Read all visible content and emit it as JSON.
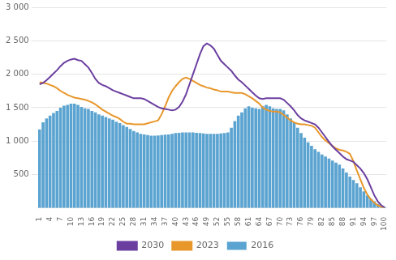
{
  "chart_data": {
    "type": "bar",
    "x": [
      1,
      2,
      3,
      4,
      5,
      6,
      7,
      8,
      9,
      10,
      11,
      12,
      13,
      14,
      15,
      16,
      17,
      18,
      19,
      20,
      21,
      22,
      23,
      24,
      25,
      26,
      27,
      28,
      29,
      30,
      31,
      32,
      33,
      34,
      35,
      36,
      37,
      38,
      39,
      40,
      41,
      42,
      43,
      44,
      45,
      46,
      47,
      48,
      49,
      50,
      51,
      52,
      53,
      54,
      55,
      56,
      57,
      58,
      59,
      60,
      61,
      62,
      63,
      64,
      65,
      66,
      67,
      68,
      69,
      70,
      71,
      72,
      73,
      74,
      75,
      76,
      77,
      78,
      79,
      80,
      81,
      82,
      83,
      84,
      85,
      86,
      87,
      88,
      89,
      90,
      91,
      92,
      93,
      94,
      95,
      96,
      97,
      98,
      99,
      100
    ],
    "series": [
      {
        "name": "2016",
        "type": "bar",
        "color": "#5ba3d0",
        "values": [
          1175,
          1280,
          1340,
          1380,
          1420,
          1450,
          1500,
          1530,
          1540,
          1560,
          1560,
          1540,
          1510,
          1490,
          1480,
          1450,
          1430,
          1400,
          1380,
          1360,
          1340,
          1320,
          1290,
          1270,
          1240,
          1210,
          1180,
          1150,
          1130,
          1110,
          1100,
          1090,
          1080,
          1080,
          1085,
          1090,
          1095,
          1100,
          1110,
          1120,
          1125,
          1130,
          1130,
          1130,
          1130,
          1125,
          1120,
          1115,
          1110,
          1110,
          1110,
          1110,
          1115,
          1120,
          1130,
          1200,
          1300,
          1380,
          1430,
          1490,
          1520,
          1500,
          1490,
          1480,
          1520,
          1540,
          1520,
          1490,
          1480,
          1480,
          1460,
          1400,
          1340,
          1280,
          1200,
          1120,
          1050,
          980,
          930,
          880,
          840,
          800,
          770,
          740,
          710,
          680,
          650,
          590,
          530,
          470,
          420,
          370,
          310,
          250,
          190,
          140,
          100,
          60,
          30,
          10
        ]
      },
      {
        "name": "2023",
        "type": "line",
        "color": "#e8972b",
        "values": [
          1880,
          1870,
          1860,
          1840,
          1820,
          1790,
          1750,
          1720,
          1690,
          1670,
          1650,
          1640,
          1630,
          1620,
          1600,
          1580,
          1550,
          1510,
          1470,
          1440,
          1410,
          1380,
          1360,
          1330,
          1290,
          1260,
          1260,
          1250,
          1250,
          1250,
          1250,
          1265,
          1280,
          1295,
          1310,
          1400,
          1520,
          1650,
          1750,
          1820,
          1880,
          1930,
          1950,
          1930,
          1900,
          1870,
          1840,
          1820,
          1800,
          1790,
          1770,
          1760,
          1740,
          1740,
          1740,
          1730,
          1720,
          1720,
          1720,
          1700,
          1670,
          1640,
          1600,
          1560,
          1500,
          1470,
          1450,
          1440,
          1440,
          1430,
          1390,
          1350,
          1310,
          1280,
          1260,
          1250,
          1250,
          1240,
          1230,
          1200,
          1130,
          1060,
          1010,
          970,
          930,
          890,
          870,
          860,
          840,
          810,
          700,
          560,
          430,
          300,
          200,
          130,
          80,
          40,
          20,
          10
        ]
      },
      {
        "name": "2030",
        "type": "line",
        "color": "#6b3fa0",
        "values": [
          1850,
          1870,
          1910,
          1960,
          2010,
          2060,
          2120,
          2170,
          2200,
          2220,
          2230,
          2210,
          2200,
          2150,
          2100,
          2020,
          1930,
          1870,
          1840,
          1820,
          1790,
          1760,
          1740,
          1720,
          1700,
          1680,
          1660,
          1640,
          1640,
          1640,
          1630,
          1600,
          1570,
          1540,
          1510,
          1490,
          1480,
          1470,
          1460,
          1470,
          1510,
          1590,
          1700,
          1850,
          2000,
          2150,
          2300,
          2420,
          2460,
          2430,
          2380,
          2290,
          2200,
          2150,
          2100,
          2050,
          1980,
          1920,
          1880,
          1830,
          1780,
          1730,
          1680,
          1640,
          1630,
          1640,
          1640,
          1640,
          1640,
          1640,
          1620,
          1570,
          1520,
          1460,
          1390,
          1340,
          1310,
          1290,
          1270,
          1250,
          1200,
          1130,
          1060,
          990,
          920,
          870,
          820,
          770,
          730,
          710,
          690,
          640,
          590,
          520,
          430,
          310,
          190,
          100,
          40,
          10
        ]
      }
    ],
    "xlim": [
      0.5,
      100.5
    ],
    "xticks": [
      1,
      4,
      7,
      10,
      13,
      16,
      19,
      22,
      25,
      28,
      31,
      34,
      37,
      40,
      43,
      46,
      49,
      52,
      55,
      58,
      61,
      64,
      67,
      70,
      73,
      76,
      79,
      82,
      85,
      88,
      91,
      94,
      97,
      100
    ],
    "ylim": [
      0,
      3000
    ],
    "yticks": [
      500,
      {
        "value": 1000,
        "label": "1 000"
      },
      {
        "value": 1500,
        "label": "1 500"
      },
      {
        "value": 2000,
        "label": "2 000"
      },
      {
        "value": 2500,
        "label": "2 500"
      },
      {
        "value": 3000,
        "label": "3 000"
      }
    ],
    "grid": "y",
    "legend": "bottom"
  }
}
